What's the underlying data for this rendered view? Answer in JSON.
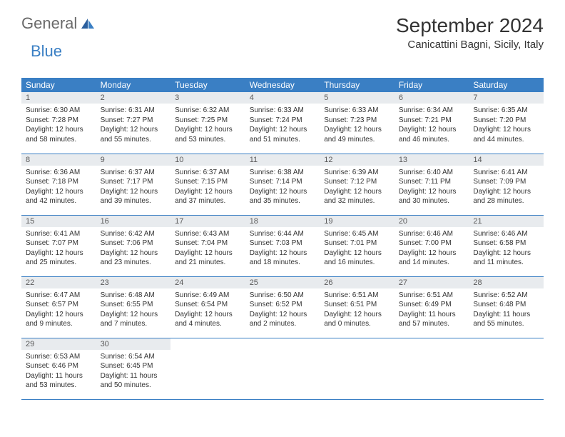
{
  "logo": {
    "general": "General",
    "blue": "Blue"
  },
  "title": "September 2024",
  "location": "Canicattini Bagni, Sicily, Italy",
  "headers": [
    "Sunday",
    "Monday",
    "Tuesday",
    "Wednesday",
    "Thursday",
    "Friday",
    "Saturday"
  ],
  "colors": {
    "header_bg": "#3a7fc4",
    "header_text": "#ffffff",
    "daynum_bg": "#e8ebee",
    "border": "#3a7fc4",
    "logo_gray": "#6a6a6a",
    "logo_blue": "#3a7fc4"
  },
  "days": [
    {
      "n": "1",
      "sr": "6:30 AM",
      "ss": "7:28 PM",
      "dl": "12 hours and 58 minutes."
    },
    {
      "n": "2",
      "sr": "6:31 AM",
      "ss": "7:27 PM",
      "dl": "12 hours and 55 minutes."
    },
    {
      "n": "3",
      "sr": "6:32 AM",
      "ss": "7:25 PM",
      "dl": "12 hours and 53 minutes."
    },
    {
      "n": "4",
      "sr": "6:33 AM",
      "ss": "7:24 PM",
      "dl": "12 hours and 51 minutes."
    },
    {
      "n": "5",
      "sr": "6:33 AM",
      "ss": "7:23 PM",
      "dl": "12 hours and 49 minutes."
    },
    {
      "n": "6",
      "sr": "6:34 AM",
      "ss": "7:21 PM",
      "dl": "12 hours and 46 minutes."
    },
    {
      "n": "7",
      "sr": "6:35 AM",
      "ss": "7:20 PM",
      "dl": "12 hours and 44 minutes."
    },
    {
      "n": "8",
      "sr": "6:36 AM",
      "ss": "7:18 PM",
      "dl": "12 hours and 42 minutes."
    },
    {
      "n": "9",
      "sr": "6:37 AM",
      "ss": "7:17 PM",
      "dl": "12 hours and 39 minutes."
    },
    {
      "n": "10",
      "sr": "6:37 AM",
      "ss": "7:15 PM",
      "dl": "12 hours and 37 minutes."
    },
    {
      "n": "11",
      "sr": "6:38 AM",
      "ss": "7:14 PM",
      "dl": "12 hours and 35 minutes."
    },
    {
      "n": "12",
      "sr": "6:39 AM",
      "ss": "7:12 PM",
      "dl": "12 hours and 32 minutes."
    },
    {
      "n": "13",
      "sr": "6:40 AM",
      "ss": "7:11 PM",
      "dl": "12 hours and 30 minutes."
    },
    {
      "n": "14",
      "sr": "6:41 AM",
      "ss": "7:09 PM",
      "dl": "12 hours and 28 minutes."
    },
    {
      "n": "15",
      "sr": "6:41 AM",
      "ss": "7:07 PM",
      "dl": "12 hours and 25 minutes."
    },
    {
      "n": "16",
      "sr": "6:42 AM",
      "ss": "7:06 PM",
      "dl": "12 hours and 23 minutes."
    },
    {
      "n": "17",
      "sr": "6:43 AM",
      "ss": "7:04 PM",
      "dl": "12 hours and 21 minutes."
    },
    {
      "n": "18",
      "sr": "6:44 AM",
      "ss": "7:03 PM",
      "dl": "12 hours and 18 minutes."
    },
    {
      "n": "19",
      "sr": "6:45 AM",
      "ss": "7:01 PM",
      "dl": "12 hours and 16 minutes."
    },
    {
      "n": "20",
      "sr": "6:46 AM",
      "ss": "7:00 PM",
      "dl": "12 hours and 14 minutes."
    },
    {
      "n": "21",
      "sr": "6:46 AM",
      "ss": "6:58 PM",
      "dl": "12 hours and 11 minutes."
    },
    {
      "n": "22",
      "sr": "6:47 AM",
      "ss": "6:57 PM",
      "dl": "12 hours and 9 minutes."
    },
    {
      "n": "23",
      "sr": "6:48 AM",
      "ss": "6:55 PM",
      "dl": "12 hours and 7 minutes."
    },
    {
      "n": "24",
      "sr": "6:49 AM",
      "ss": "6:54 PM",
      "dl": "12 hours and 4 minutes."
    },
    {
      "n": "25",
      "sr": "6:50 AM",
      "ss": "6:52 PM",
      "dl": "12 hours and 2 minutes."
    },
    {
      "n": "26",
      "sr": "6:51 AM",
      "ss": "6:51 PM",
      "dl": "12 hours and 0 minutes."
    },
    {
      "n": "27",
      "sr": "6:51 AM",
      "ss": "6:49 PM",
      "dl": "11 hours and 57 minutes."
    },
    {
      "n": "28",
      "sr": "6:52 AM",
      "ss": "6:48 PM",
      "dl": "11 hours and 55 minutes."
    },
    {
      "n": "29",
      "sr": "6:53 AM",
      "ss": "6:46 PM",
      "dl": "11 hours and 53 minutes."
    },
    {
      "n": "30",
      "sr": "6:54 AM",
      "ss": "6:45 PM",
      "dl": "11 hours and 50 minutes."
    }
  ],
  "labels": {
    "sunrise": "Sunrise:",
    "sunset": "Sunset:",
    "daylight": "Daylight:"
  }
}
